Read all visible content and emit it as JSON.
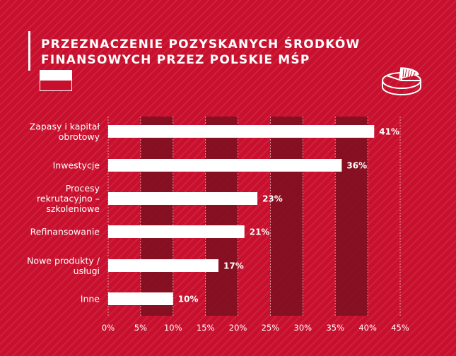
{
  "title_line1": "PRZEZNACZENIE POZYSKANYCH ŚRODKÓW",
  "title_line2": "FINANSOWYCH PRZEZ POLSKIE MŚP",
  "colors": {
    "background": "#c8102e",
    "bar": "#ffffff",
    "band": "#7a0f1e",
    "text": "#ffffff"
  },
  "icons": {
    "flag": "poland-flag-icon",
    "pie": "pie-chart-icon"
  },
  "chart_data": {
    "type": "bar",
    "orientation": "horizontal",
    "categories": [
      [
        "Zapasy i kapitał",
        "obrotowy"
      ],
      [
        "Inwestycje"
      ],
      [
        "Procesy",
        "rekrutacyjno –",
        "szkoleniowe"
      ],
      [
        "Refinansowanie"
      ],
      [
        "Nowe produkty /",
        "usługi"
      ],
      [
        "Inne"
      ]
    ],
    "values": [
      41,
      36,
      23,
      21,
      17,
      10
    ],
    "value_labels": [
      "41%",
      "36%",
      "23%",
      "21%",
      "17%",
      "10%"
    ],
    "xlim": [
      0,
      45
    ],
    "x_ticks": [
      0,
      5,
      10,
      15,
      20,
      25,
      30,
      35,
      40,
      45
    ],
    "x_tick_labels": [
      "0%",
      "5%",
      "10%",
      "15%",
      "20%",
      "25%",
      "30%",
      "35%",
      "40%",
      "45%"
    ],
    "shaded_intervals": [
      [
        5,
        10
      ],
      [
        15,
        20
      ],
      [
        25,
        30
      ],
      [
        35,
        40
      ]
    ],
    "grid": true
  }
}
